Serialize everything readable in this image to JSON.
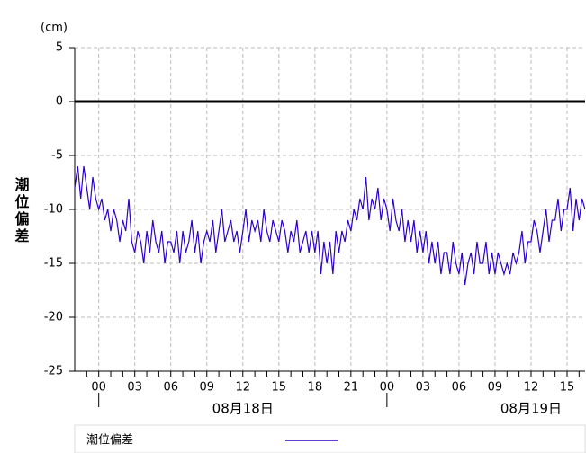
{
  "chart_data": {
    "type": "line",
    "y_unit": "(cm)",
    "y_label": "潮位偏差",
    "x": [
      -2,
      -1.75,
      -1.5,
      -1.25,
      -1,
      -0.75,
      -0.5,
      -0.25,
      0,
      0.25,
      0.5,
      0.75,
      1,
      1.25,
      1.5,
      1.75,
      2,
      2.25,
      2.5,
      2.75,
      3,
      3.25,
      3.5,
      3.75,
      4,
      4.25,
      4.5,
      4.75,
      5,
      5.25,
      5.5,
      5.75,
      6,
      6.25,
      6.5,
      6.75,
      7,
      7.25,
      7.5,
      7.75,
      8,
      8.25,
      8.5,
      8.75,
      9,
      9.25,
      9.5,
      9.75,
      10,
      10.25,
      10.5,
      10.75,
      11,
      11.25,
      11.5,
      11.75,
      12,
      12.25,
      12.5,
      12.75,
      13,
      13.25,
      13.5,
      13.75,
      14,
      14.25,
      14.5,
      14.75,
      15,
      15.25,
      15.5,
      15.75,
      16,
      16.25,
      16.5,
      16.75,
      17,
      17.25,
      17.5,
      17.75,
      18,
      18.25,
      18.5,
      18.75,
      19,
      19.25,
      19.5,
      19.75,
      20,
      20.25,
      20.5,
      20.75,
      21,
      21.25,
      21.5,
      21.75,
      22,
      22.25,
      22.5,
      22.75,
      23,
      23.25,
      23.5,
      23.75,
      24,
      24.25,
      24.5,
      24.75,
      25,
      25.25,
      25.5,
      25.75,
      26,
      26.25,
      26.5,
      26.75,
      27,
      27.25,
      27.5,
      27.75,
      28,
      28.25,
      28.5,
      28.75,
      29,
      29.25,
      29.5,
      29.75,
      30,
      30.25,
      30.5,
      30.75,
      31,
      31.25,
      31.5,
      31.75,
      32,
      32.25,
      32.5,
      32.75,
      33,
      33.25,
      33.5,
      33.75,
      34,
      34.25,
      34.5,
      34.75,
      35,
      35.25,
      35.5,
      35.75,
      36,
      36.25,
      36.5,
      36.75,
      37,
      37.25,
      37.5,
      37.75,
      38,
      38.25,
      38.5,
      38.75,
      39,
      39.25,
      39.5,
      39.75,
      40,
      40.25,
      40.5
    ],
    "series": [
      {
        "name": "潮位偏差",
        "color": "#2e00c8",
        "values": [
          -8,
          -6,
          -9,
          -6,
          -8,
          -10,
          -7,
          -9,
          -10,
          -9,
          -11,
          -10,
          -12,
          -10,
          -11,
          -13,
          -11,
          -12,
          -9,
          -13,
          -14,
          -12,
          -13,
          -15,
          -12,
          -14,
          -11,
          -13,
          -14,
          -12,
          -15,
          -13,
          -13,
          -14,
          -12,
          -15,
          -12,
          -14,
          -13,
          -11,
          -14,
          -12,
          -15,
          -13,
          -12,
          -13,
          -11,
          -14,
          -12,
          -10,
          -13,
          -12,
          -11,
          -13,
          -12,
          -14,
          -12,
          -10,
          -13,
          -11,
          -12,
          -11,
          -13,
          -10,
          -12,
          -13,
          -11,
          -12,
          -13,
          -11,
          -12,
          -14,
          -12,
          -13,
          -11,
          -14,
          -13,
          -12,
          -14,
          -12,
          -14,
          -12,
          -16,
          -13,
          -15,
          -13,
          -16,
          -12,
          -14,
          -12,
          -13,
          -11,
          -12,
          -10,
          -11,
          -9,
          -10,
          -7,
          -11,
          -9,
          -10,
          -8,
          -11,
          -9,
          -10,
          -12,
          -9,
          -11,
          -12,
          -10,
          -13,
          -11,
          -13,
          -11,
          -14,
          -12,
          -14,
          -12,
          -15,
          -13,
          -15,
          -13,
          -16,
          -14,
          -14,
          -16,
          -13,
          -15,
          -16,
          -14,
          -17,
          -15,
          -14,
          -16,
          -13,
          -15,
          -15,
          -13,
          -16,
          -14,
          -16,
          -14,
          -15,
          -16,
          -15,
          -16,
          -14,
          -15,
          -14,
          -12,
          -15,
          -13,
          -13,
          -11,
          -12,
          -14,
          -12,
          -10,
          -13,
          -11,
          -11,
          -9,
          -12,
          -10,
          -10,
          -8,
          -12,
          -9,
          -11,
          -9,
          -10
        ]
      }
    ],
    "reference_line": 0,
    "xlim": [
      -2,
      40.5
    ],
    "xticks": [
      {
        "value": 0,
        "label": "00"
      },
      {
        "value": 3,
        "label": "03"
      },
      {
        "value": 6,
        "label": "06"
      },
      {
        "value": 9,
        "label": "09"
      },
      12,
      15,
      18,
      21,
      {
        "value": 24,
        "label": "00"
      },
      {
        "value": 27,
        "label": "03"
      },
      {
        "value": 30,
        "label": "06"
      },
      {
        "value": 33,
        "label": "09"
      },
      {
        "value": 36,
        "label": "12"
      },
      {
        "value": 39,
        "label": "15"
      }
    ],
    "xminorticks": [
      -1,
      0,
      1,
      2,
      3,
      4,
      5,
      6,
      7,
      8,
      9,
      10,
      11,
      12,
      13,
      14,
      15,
      16,
      17,
      18,
      19,
      20,
      21,
      22,
      23,
      24,
      25,
      26,
      27,
      28,
      29,
      30,
      31,
      32,
      33,
      34,
      35,
      36,
      37,
      38,
      39,
      40
    ],
    "days": [
      {
        "start": 0,
        "label": "08月18日"
      },
      {
        "start": 24,
        "label": "08月19日"
      }
    ],
    "ylim": [
      -25,
      5
    ],
    "yticks": [
      5,
      0,
      -5,
      -10,
      -15,
      -20,
      -25
    ],
    "grid": true
  }
}
